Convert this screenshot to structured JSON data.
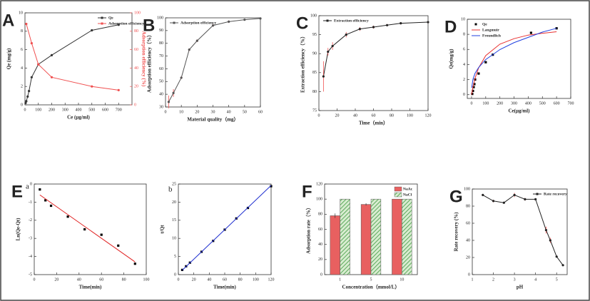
{
  "chart_data": [
    {
      "type": "line",
      "panel": "A",
      "xlabel": "Ce (μg/ml)",
      "ylabel": "Qe (mg/g)",
      "y2label": "Adsorption efficiency (%)",
      "xlim": [
        0,
        800
      ],
      "xticks": [
        0,
        100,
        200,
        300,
        400,
        500,
        600,
        700
      ],
      "ylim": [
        0,
        10
      ],
      "yticks": [
        0,
        2,
        4,
        6,
        8,
        10
      ],
      "y2lim": [
        0,
        100
      ],
      "y2ticks": [
        0,
        20,
        40,
        60,
        80,
        100
      ],
      "legend": "upper right",
      "series": [
        {
          "name": "Qe",
          "color": "#333333",
          "mode": "lines+markers",
          "x": [
            5,
            10,
            20,
            30,
            50,
            100,
            200,
            500,
            700
          ],
          "values": [
            0.2,
            0.4,
            0.9,
            1.5,
            3.0,
            4.4,
            5.4,
            8.1,
            8.7
          ]
        },
        {
          "name": "Adsorption efficiency",
          "color": "#f05050",
          "mode": "lines+markers",
          "axis": "y2",
          "x": [
            10,
            50,
            100,
            200,
            500,
            700
          ],
          "values": [
            88,
            67,
            44,
            30,
            20,
            16
          ]
        }
      ]
    },
    {
      "type": "line",
      "panel": "B",
      "xlabel": "Material quality（mg）",
      "ylabel": "Adsorption efficiency（%）",
      "xlim": [
        0,
        60
      ],
      "xticks": [
        0,
        10,
        20,
        30,
        40,
        50,
        60
      ],
      "ylim": [
        30,
        100
      ],
      "yticks": [
        30,
        40,
        50,
        60,
        70,
        80,
        90,
        100
      ],
      "legend": "upper left",
      "series": [
        {
          "name": "Adsorption efficiency",
          "color": "#555555",
          "mode": "lines+markers",
          "x": [
            2,
            5,
            10,
            15,
            20,
            30,
            40,
            50,
            60
          ],
          "values": [
            34,
            41,
            53,
            75,
            82,
            94,
            97,
            98.5,
            99.5
          ],
          "errors": [
            5,
            3,
            1,
            1,
            1,
            1,
            1,
            0.5,
            0.5
          ],
          "error_color": "#f05050"
        }
      ]
    },
    {
      "type": "line",
      "panel": "C",
      "xlabel": "Time（min）",
      "ylabel": "Extraction efficiency（%）",
      "xlim": [
        0,
        120
      ],
      "xticks": [
        0,
        20,
        40,
        60,
        80,
        100,
        120
      ],
      "ylim": [
        75,
        100
      ],
      "yticks": [
        75,
        80,
        85,
        90,
        95,
        100
      ],
      "legend": "upper left",
      "series": [
        {
          "name": "Extraction efficiency",
          "color": "#222222",
          "mode": "lines+markers",
          "x": [
            5,
            10,
            15,
            30,
            45,
            60,
            75,
            90,
            120
          ],
          "values": [
            84,
            90.5,
            92,
            95,
            96.5,
            97,
            97.5,
            98,
            98.3
          ],
          "errors": [
            4,
            1,
            1,
            0.7,
            0.5,
            0.4,
            0.3,
            0.3,
            0.3
          ],
          "error_color": "#f05050"
        }
      ]
    },
    {
      "type": "scatter",
      "panel": "D",
      "xlabel": "Ce(μg/ml)",
      "ylabel": "Qe(mg/g)",
      "xlim": [
        -30,
        700
      ],
      "xticks": [
        0,
        100,
        200,
        300,
        400,
        500,
        600,
        700
      ],
      "ylim": [
        -0.5,
        10
      ],
      "yticks": [
        0,
        2,
        4,
        6,
        8,
        10
      ],
      "legend": "upper left",
      "series": [
        {
          "name": "Qe",
          "color": "#000000",
          "mode": "markers",
          "x": [
            5,
            10,
            15,
            20,
            25,
            50,
            100,
            150,
            420,
            600
          ],
          "values": [
            0.1,
            0.5,
            1.0,
            1.4,
            2.0,
            2.8,
            4.3,
            5.3,
            8.2,
            8.8
          ]
        },
        {
          "name": "Langmuir",
          "color": "#e83030",
          "mode": "lines",
          "x": [
            0,
            10,
            25,
            50,
            100,
            200,
            300,
            400,
            500,
            600
          ],
          "values": [
            0,
            1.02,
            2.19,
            3.56,
            5.18,
            6.7,
            7.43,
            7.9,
            8.14,
            8.34
          ]
        },
        {
          "name": "Freundlich",
          "color": "#2040e0",
          "mode": "lines",
          "x": [
            1,
            10,
            25,
            50,
            100,
            200,
            300,
            400,
            500,
            600
          ],
          "values": [
            0.9,
            2.05,
            2.85,
            3.6,
            4.66,
            5.98,
            6.9,
            7.6,
            8.3,
            8.8
          ]
        }
      ]
    },
    {
      "type": "scatter",
      "panel": "E",
      "sublabel": "a",
      "xlabel": "Time(min)",
      "ylabel": "Ln(Qe-Qt)",
      "xlim": [
        0,
        100
      ],
      "xticks": [
        0,
        20,
        40,
        60,
        80,
        100
      ],
      "ylim": [
        -5,
        0
      ],
      "yticks": [
        -5,
        -4,
        -3,
        -2,
        -1,
        0
      ],
      "series": [
        {
          "color": "#000000",
          "mode": "markers",
          "x": [
            5,
            10,
            15,
            30,
            45,
            60,
            75,
            90
          ],
          "values": [
            -0.3,
            -0.9,
            -1.2,
            -1.8,
            -2.5,
            -2.8,
            -3.4,
            -4.4
          ]
        },
        {
          "color": "#e02020",
          "mode": "lines",
          "x": [
            5,
            90
          ],
          "values": [
            -0.6,
            -4.3
          ]
        }
      ]
    },
    {
      "type": "scatter",
      "sublabel": "b",
      "xlabel": "Time(min)",
      "ylabel": "t/Qt",
      "xlim": [
        0,
        120
      ],
      "xticks": [
        0,
        20,
        40,
        60,
        80,
        100,
        120
      ],
      "ylim": [
        0,
        25
      ],
      "yticks": [
        0,
        5,
        10,
        15,
        20,
        25
      ],
      "series": [
        {
          "color": "#000000",
          "mode": "markers",
          "x": [
            5,
            10,
            15,
            30,
            45,
            60,
            75,
            90,
            120
          ],
          "values": [
            1.3,
            2.3,
            3.3,
            6.3,
            9.3,
            12.4,
            15.5,
            18.4,
            24.4
          ]
        },
        {
          "color": "#2030d0",
          "mode": "lines",
          "x": [
            5,
            120
          ],
          "values": [
            1.2,
            24.6
          ]
        }
      ]
    },
    {
      "type": "bar",
      "panel": "F",
      "xlabel": "Concentration（mmol/L）",
      "ylabel": "Adsorption rate（%）",
      "categories": [
        "1",
        "5",
        "10"
      ],
      "ylim": [
        0,
        120
      ],
      "yticks": [
        0,
        20,
        40,
        60,
        80,
        100,
        120
      ],
      "legend": "upper right",
      "series": [
        {
          "name": "NaAc",
          "color": "#e86060",
          "values": [
            78,
            93,
            100
          ],
          "errors": [
            3,
            1.5,
            0
          ]
        },
        {
          "name": "NaCl",
          "color": "#5caa5c",
          "hatch": true,
          "values": [
            100,
            100,
            100
          ],
          "errors": [
            0,
            0,
            0
          ]
        }
      ]
    },
    {
      "type": "line",
      "panel": "G",
      "xlabel": "pH",
      "ylabel": "Rate recovery (%)",
      "xlim": [
        1,
        5.5
      ],
      "xticks": [
        1,
        2,
        3,
        4,
        5
      ],
      "ylim": [
        0,
        100
      ],
      "yticks": [
        0,
        20,
        40,
        60,
        80,
        100
      ],
      "legend": "upper right",
      "series": [
        {
          "name": "Rate recovery",
          "color": "#222222",
          "mode": "lines+markers",
          "x": [
            1.5,
            2,
            2.5,
            3,
            3.5,
            4,
            4.5,
            4.7,
            5,
            5.3
          ],
          "values": [
            93,
            86,
            84,
            93,
            88,
            88,
            52,
            40,
            21,
            11
          ],
          "errors": [
            1,
            1.5,
            1,
            2.5,
            1.5,
            1,
            4,
            3,
            1,
            1
          ],
          "error_color": "#f05050"
        }
      ]
    }
  ]
}
